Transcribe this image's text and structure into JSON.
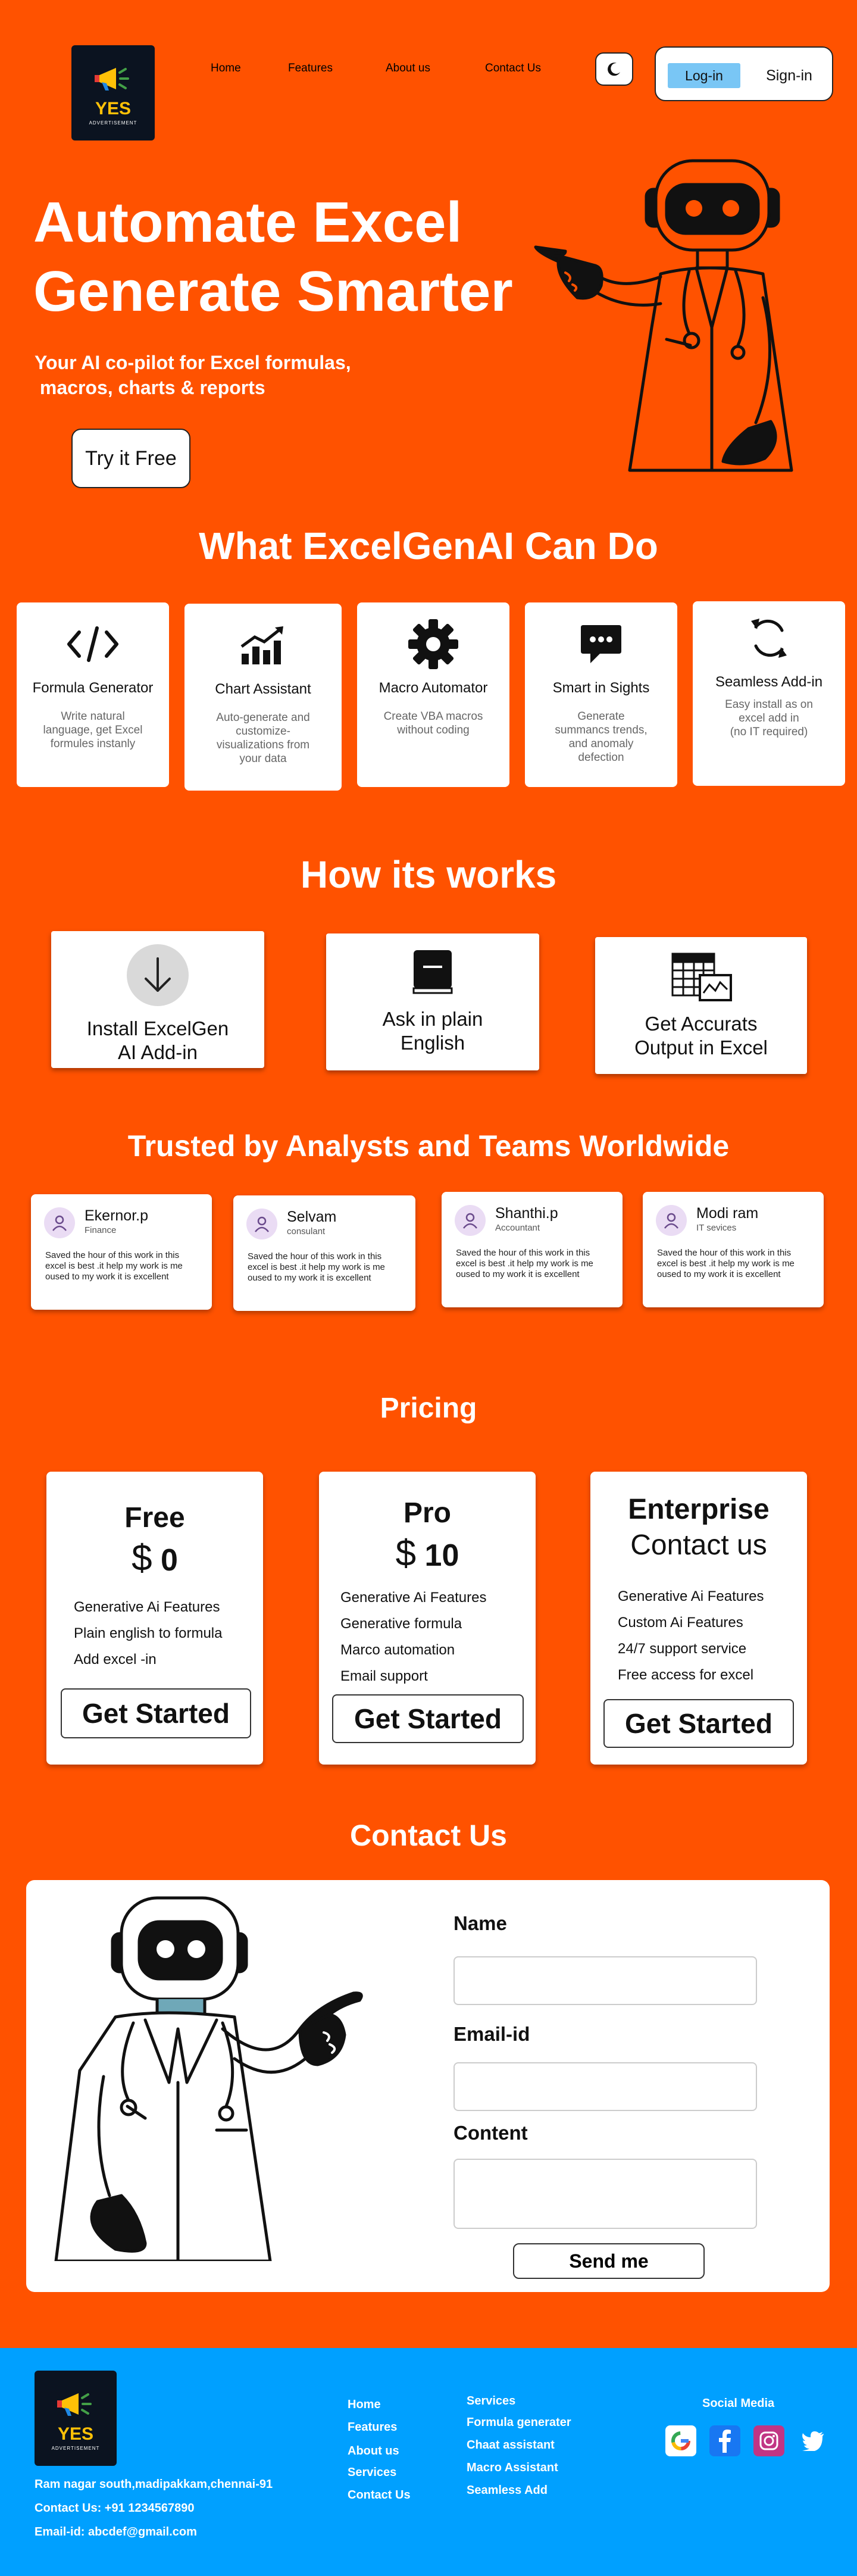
{
  "brand": {
    "name": "YES",
    "tagline": "ADVERTISEMENT"
  },
  "nav": {
    "items": [
      "Home",
      "Features",
      "About us",
      "Contact Us"
    ]
  },
  "auth": {
    "login": "Log-in",
    "signin": "Sign-in"
  },
  "hero": {
    "title_line1": "Automate Excel",
    "title_line2": "Generate Smarter",
    "subtitle_line1": "Your AI co-pilot for Excel formulas,",
    "subtitle_line2": "macros, charts & reports",
    "cta": "Try it Free"
  },
  "features": {
    "title": "What ExcelGenAI Can Do",
    "cards": [
      {
        "icon": "code-icon",
        "title": "Formula Generator",
        "desc": [
          "Write natural",
          "language, get Excel",
          "formules instanly"
        ]
      },
      {
        "icon": "chart-icon",
        "title": "Chart Assistant",
        "desc": [
          "Auto-generate and",
          "customize-",
          "visualizations from",
          "your data"
        ]
      },
      {
        "icon": "gear-icon",
        "title": "Macro Automator",
        "desc": [
          "Create VBA macros",
          "without coding"
        ]
      },
      {
        "icon": "chat-icon",
        "title": "Smart in Sights",
        "desc": [
          "Generate",
          "summancs trends,",
          "and anomaly",
          "defection"
        ]
      },
      {
        "icon": "refresh-icon",
        "title": "Seamless Add-in",
        "desc": [
          "Easy install as on",
          "excel add in",
          "(no IT required)"
        ]
      }
    ]
  },
  "how": {
    "title": "How its works",
    "steps": [
      {
        "icon": "download-icon",
        "line1": "Install ExcelGen",
        "line2": "AI Add-in"
      },
      {
        "icon": "note-icon",
        "line1": "Ask in plain",
        "line2": "English"
      },
      {
        "icon": "spreadsheet-icon",
        "line1": "Get Accurats",
        "line2": "Output in Excel"
      }
    ]
  },
  "testimonials": {
    "title": "Trusted by Analysts and Teams Worldwide",
    "items": [
      {
        "name": "Ekernor.p",
        "role": "Finance",
        "text": "Saved the hour of this work in this excel is best .it help my work is me oused to my work it is excellent"
      },
      {
        "name": "Selvam",
        "role": "consulant",
        "text": "Saved the hour of this work in this excel is best .it help my work is me oused to my work it is excellent"
      },
      {
        "name": "Shanthi.p",
        "role": "Accountant",
        "text": "Saved the hour of this work in this excel is best .it help my work is me oused to my work it is excellent"
      },
      {
        "name": "Modi ram",
        "role": "IT sevices",
        "text": "Saved the hour of this work in this excel is best .it help my work is me oused to my work it is excellent"
      }
    ]
  },
  "pricing": {
    "title": "Pricing",
    "plans": [
      {
        "name": "Free",
        "currency": "$",
        "price": "0",
        "features": [
          "Generative Ai Features",
          "Plain english to formula",
          "Add excel -in"
        ],
        "cta": "Get Started"
      },
      {
        "name": "Pro",
        "currency": "$",
        "price": "10",
        "features": [
          "Generative Ai Features",
          "Generative formula",
          "Marco  automation",
          "Email support"
        ],
        "cta": "Get Started"
      },
      {
        "name": "Enterprise",
        "price_text": "Contact us",
        "features": [
          "Generative Ai Features",
          "Custom Ai Features",
          "24/7 support service",
          "Free access for excel"
        ],
        "cta": "Get Started"
      }
    ]
  },
  "contact": {
    "title": "Contact Us",
    "name_label": "Name",
    "email_label": "Email-id",
    "content_label": "Content",
    "send": "Send me"
  },
  "footer": {
    "address": "Ram nagar south,madipakkam,chennai-91",
    "phone": "Contact Us: +91 1234567890",
    "email": "Email-id: abcdef@gmail.com",
    "links": [
      "Home",
      "Features",
      "About us",
      "Services",
      "Contact Us"
    ],
    "services_title": "Services",
    "services": [
      "Formula generater",
      "Chaat assistant",
      "Macro Assistant",
      "Seamless Add"
    ],
    "social_title": "Social Media"
  },
  "colors": {
    "background": "#FF5200",
    "footer": "#00A0FF",
    "login": "#79C6F5",
    "card": "#FFFFFF"
  }
}
